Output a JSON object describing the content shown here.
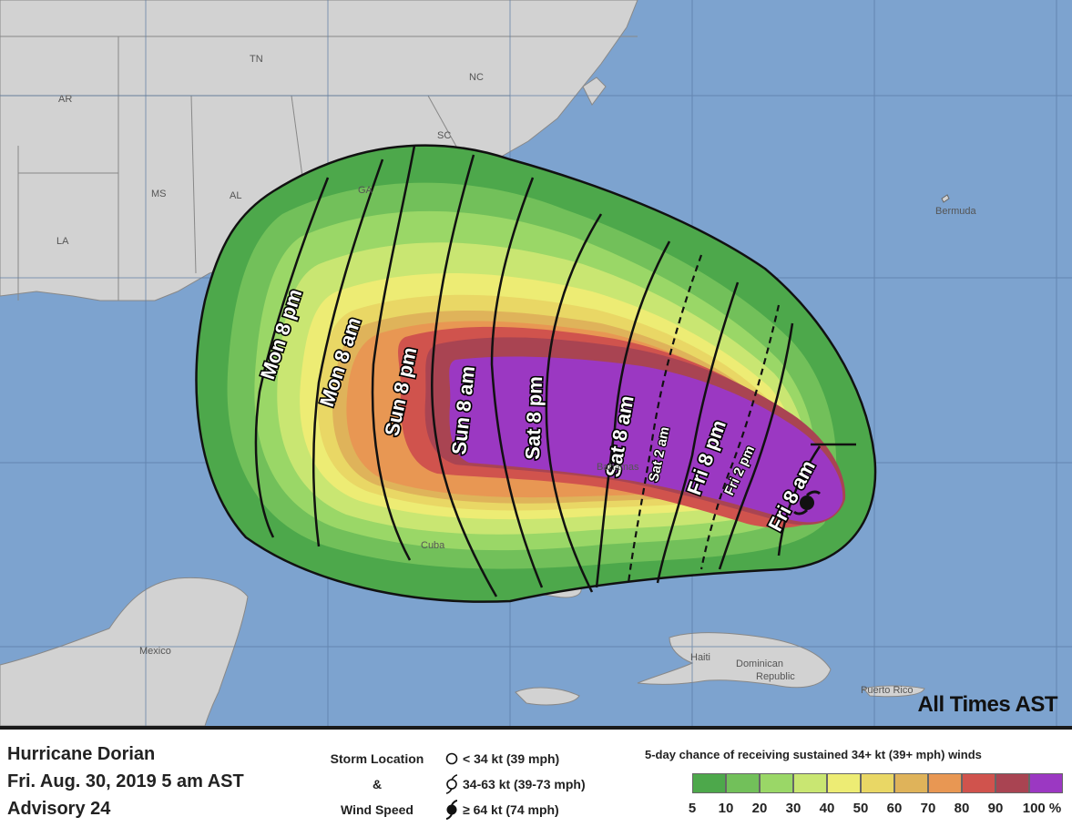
{
  "map": {
    "labels": {
      "tn": "TN",
      "nc": "NC",
      "ar": "AR",
      "sc": "SC",
      "ms": "MS",
      "al": "AL",
      "ga": "GA",
      "la": "LA",
      "bermuda": "Bermuda",
      "cuba": "Cuba",
      "mexico": "Mexico",
      "haiti": "Haiti",
      "dominican": "Dominican",
      "republic": "Republic",
      "puerto_rico": "Puerto Rico",
      "bahamas": "Bahamas"
    },
    "arrival_times": {
      "mon_8pm": "Mon 8 pm",
      "mon_8am": "Mon 8 am",
      "sun_8pm": "Sun 8 pm",
      "sun_8am": "Sun 8 am",
      "sat_8pm": "Sat 8 pm",
      "sat_8am": "Sat 8 am",
      "sat_2am": "Sat 2 am",
      "fri_8pm": "Fri 8 pm",
      "fri_2pm": "Fri 2 pm",
      "fri_8am": "Fri 8 am"
    },
    "all_times": "All Times AST",
    "colors": {
      "ocean": "#7da3cf",
      "land": "#d2d2d2",
      "p5": "#4da84b",
      "p10": "#72c05a",
      "p20": "#9ad767",
      "p30": "#c9e672",
      "p40": "#edec74",
      "p50": "#e9d765",
      "p60": "#dfb35a",
      "p70": "#e89753",
      "p80": "#d0534d",
      "p90": "#a94452",
      "p100": "#9b38c2"
    }
  },
  "footer": {
    "storm_name": "Hurricane Dorian",
    "advisory_time": "Fri. Aug. 30, 2019  5 am AST",
    "advisory_number": "Advisory 24",
    "key_caption_line1": "Storm Location",
    "key_caption_line2": "&",
    "key_caption_line3": "Wind Speed",
    "key_items": [
      {
        "icon": "open-circle-icon",
        "label": "< 34 kt (39 mph)"
      },
      {
        "icon": "tropical-storm-icon",
        "label": "34-63 kt (39-73 mph)"
      },
      {
        "icon": "hurricane-icon",
        "label": "≥ 64 kt (74 mph)"
      }
    ],
    "probability_title": "5-day chance of receiving sustained 34+ kt (39+ mph) winds",
    "probability_swatches": [
      "#4da84b",
      "#72c05a",
      "#9ad767",
      "#c9e672",
      "#edec74",
      "#e9d765",
      "#dfb35a",
      "#e89753",
      "#d0534d",
      "#a94452",
      "#9b38c2"
    ],
    "probability_ticks": [
      "5",
      "10",
      "20",
      "30",
      "40",
      "50",
      "60",
      "70",
      "80",
      "90",
      "100 %"
    ]
  }
}
